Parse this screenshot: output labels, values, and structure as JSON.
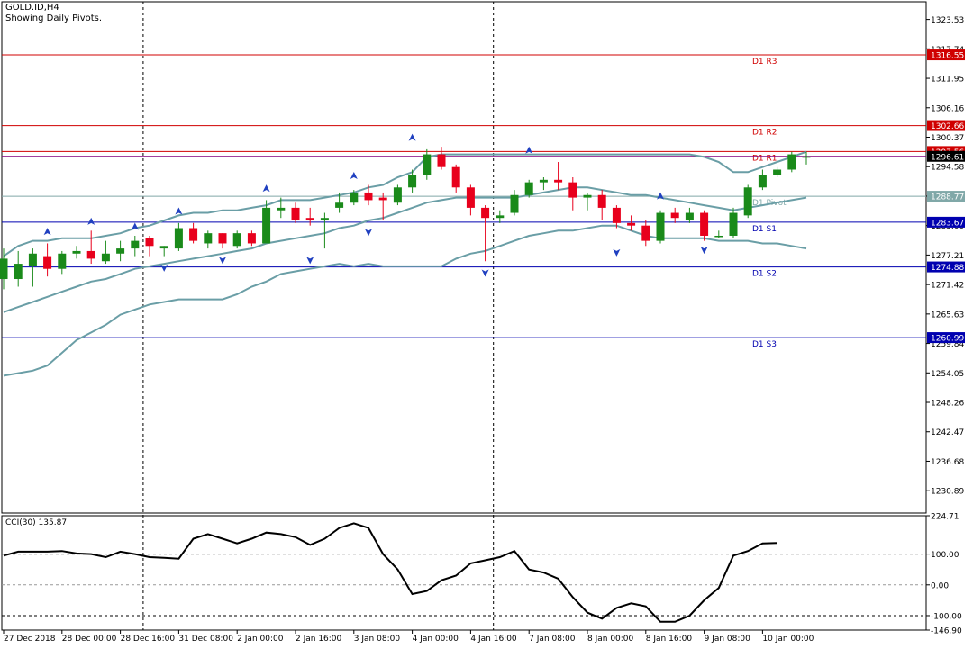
{
  "header": {
    "symbol": "GOLD.ID,H4",
    "subtitle": "Showing Daily Pivots."
  },
  "colors": {
    "background": "#ffffff",
    "axis": "#000000",
    "bull_candle": "#1a8a1a",
    "bear_candle": "#e8001c",
    "bollinger": "#6a9ea6",
    "resistance": "#d00000",
    "support": "#0000b0",
    "pivot": "#80a8a8",
    "fractal": "#2040c0",
    "cci_line": "#000000",
    "current_price": "#800080"
  },
  "chart_data": [
    {
      "type": "candlestick",
      "title": "GOLD.ID,H4",
      "ylim": [
        1226.5,
        1327.0
      ],
      "grid": false,
      "y_ticks": [
        "1323.53",
        "1317.74",
        "1311.95",
        "1306.16",
        "1300.37",
        "1294.58",
        "1288.79",
        "1283.00",
        "1277.21",
        "1271.42",
        "1265.63",
        "1259.84",
        "1254.05",
        "1248.26",
        "1242.47",
        "1236.68",
        "1230.89"
      ],
      "x_ticks": [
        {
          "label": "27 Dec 2018",
          "i": 0
        },
        {
          "label": "28 Dec 00:00",
          "i": 4
        },
        {
          "label": "28 Dec 16:00",
          "i": 8
        },
        {
          "label": "31 Dec 08:00",
          "i": 12
        },
        {
          "label": "2 Jan 00:00",
          "i": 16
        },
        {
          "label": "2 Jan 16:00",
          "i": 20
        },
        {
          "label": "3 Jan 08:00",
          "i": 24
        },
        {
          "label": "4 Jan 00:00",
          "i": 28
        },
        {
          "label": "4 Jan 16:00",
          "i": 32
        },
        {
          "label": "7 Jan 08:00",
          "i": 36
        },
        {
          "label": "8 Jan 00:00",
          "i": 40
        },
        {
          "label": "8 Jan 16:00",
          "i": 44
        },
        {
          "label": "9 Jan 08:00",
          "i": 48
        },
        {
          "label": "10 Jan 00:00",
          "i": 52
        }
      ],
      "period_separators": [
        10,
        34
      ],
      "pivot_levels": [
        {
          "name": "D1 R3",
          "value": 1316.55,
          "tag": "1316.55",
          "kind": "resistance"
        },
        {
          "name": "D1 R2",
          "value": 1302.66,
          "tag": "1302.66",
          "kind": "resistance"
        },
        {
          "name": "D1 R1",
          "value": 1297.56,
          "tag": "1297.56",
          "kind": "resistance"
        },
        {
          "name": "D1 Pivot",
          "value": 1288.77,
          "tag": "1288.77",
          "kind": "pivot"
        },
        {
          "name": "D1 S1",
          "value": 1283.67,
          "tag": "1283.67",
          "kind": "support"
        },
        {
          "name": "D1 S2",
          "value": 1274.88,
          "tag": "1274.88",
          "kind": "support"
        },
        {
          "name": "D1 S3",
          "value": 1260.99,
          "tag": "1260.99",
          "kind": "support"
        }
      ],
      "current_price": {
        "value": 1296.61,
        "tag": "1296.61"
      },
      "candles": [
        {
          "o": 1272.5,
          "h": 1278.5,
          "l": 1270.5,
          "c": 1276.5
        },
        {
          "o": 1272.5,
          "h": 1278.0,
          "l": 1271.0,
          "c": 1275.5
        },
        {
          "o": 1275.0,
          "h": 1278.5,
          "l": 1271.0,
          "c": 1277.5
        },
        {
          "o": 1277.0,
          "h": 1279.5,
          "l": 1273.0,
          "c": 1274.5
        },
        {
          "o": 1274.5,
          "h": 1278.0,
          "l": 1273.5,
          "c": 1277.5
        },
        {
          "o": 1277.5,
          "h": 1279.0,
          "l": 1276.5,
          "c": 1278.0
        },
        {
          "o": 1278.0,
          "h": 1282.0,
          "l": 1275.5,
          "c": 1276.5
        },
        {
          "o": 1276.0,
          "h": 1280.0,
          "l": 1275.5,
          "c": 1277.5
        },
        {
          "o": 1277.5,
          "h": 1280.0,
          "l": 1276.0,
          "c": 1278.5
        },
        {
          "o": 1278.5,
          "h": 1281.0,
          "l": 1277.0,
          "c": 1280.0
        },
        {
          "o": 1280.5,
          "h": 1281.0,
          "l": 1277.0,
          "c": 1279.0
        },
        {
          "o": 1278.5,
          "h": 1279.0,
          "l": 1277.0,
          "c": 1279.0
        },
        {
          "o": 1278.5,
          "h": 1283.5,
          "l": 1278.0,
          "c": 1282.5
        },
        {
          "o": 1282.5,
          "h": 1283.5,
          "l": 1279.5,
          "c": 1280.0
        },
        {
          "o": 1279.5,
          "h": 1282.0,
          "l": 1278.5,
          "c": 1281.5
        },
        {
          "o": 1281.5,
          "h": 1281.5,
          "l": 1278.5,
          "c": 1279.5
        },
        {
          "o": 1279.0,
          "h": 1282.0,
          "l": 1278.5,
          "c": 1281.5
        },
        {
          "o": 1281.5,
          "h": 1282.0,
          "l": 1279.0,
          "c": 1279.5
        },
        {
          "o": 1279.5,
          "h": 1288.0,
          "l": 1279.5,
          "c": 1286.5
        },
        {
          "o": 1286.0,
          "h": 1288.5,
          "l": 1284.5,
          "c": 1286.5
        },
        {
          "o": 1286.5,
          "h": 1287.5,
          "l": 1283.5,
          "c": 1284.0
        },
        {
          "o": 1284.5,
          "h": 1286.5,
          "l": 1283.0,
          "c": 1284.0
        },
        {
          "o": 1284.0,
          "h": 1285.5,
          "l": 1278.5,
          "c": 1284.5
        },
        {
          "o": 1286.5,
          "h": 1289.5,
          "l": 1285.5,
          "c": 1287.5
        },
        {
          "o": 1287.5,
          "h": 1290.0,
          "l": 1287.0,
          "c": 1289.5
        },
        {
          "o": 1289.5,
          "h": 1291.0,
          "l": 1287.0,
          "c": 1288.0
        },
        {
          "o": 1288.5,
          "h": 1289.5,
          "l": 1284.0,
          "c": 1288.0
        },
        {
          "o": 1287.5,
          "h": 1291.0,
          "l": 1287.0,
          "c": 1290.5
        },
        {
          "o": 1290.5,
          "h": 1294.0,
          "l": 1289.5,
          "c": 1293.0
        },
        {
          "o": 1293.0,
          "h": 1298.0,
          "l": 1292.0,
          "c": 1297.0
        },
        {
          "o": 1297.0,
          "h": 1298.5,
          "l": 1294.0,
          "c": 1294.5
        },
        {
          "o": 1294.5,
          "h": 1295.0,
          "l": 1289.5,
          "c": 1290.5
        },
        {
          "o": 1290.5,
          "h": 1291.0,
          "l": 1285.0,
          "c": 1286.5
        },
        {
          "o": 1286.5,
          "h": 1287.0,
          "l": 1276.0,
          "c": 1284.5
        },
        {
          "o": 1284.5,
          "h": 1286.0,
          "l": 1283.5,
          "c": 1285.0
        },
        {
          "o": 1285.5,
          "h": 1290.0,
          "l": 1285.0,
          "c": 1289.0
        },
        {
          "o": 1289.0,
          "h": 1292.0,
          "l": 1288.5,
          "c": 1291.5
        },
        {
          "o": 1291.5,
          "h": 1292.5,
          "l": 1290.0,
          "c": 1292.0
        },
        {
          "o": 1292.0,
          "h": 1295.5,
          "l": 1290.0,
          "c": 1291.5
        },
        {
          "o": 1291.5,
          "h": 1292.5,
          "l": 1286.0,
          "c": 1288.5
        },
        {
          "o": 1288.5,
          "h": 1289.5,
          "l": 1286.0,
          "c": 1289.0
        },
        {
          "o": 1289.0,
          "h": 1290.0,
          "l": 1284.0,
          "c": 1286.5
        },
        {
          "o": 1286.5,
          "h": 1287.0,
          "l": 1282.5,
          "c": 1283.5
        },
        {
          "o": 1283.5,
          "h": 1285.0,
          "l": 1282.0,
          "c": 1283.0
        },
        {
          "o": 1283.0,
          "h": 1284.0,
          "l": 1279.0,
          "c": 1280.0
        },
        {
          "o": 1280.0,
          "h": 1286.0,
          "l": 1279.5,
          "c": 1285.5
        },
        {
          "o": 1285.5,
          "h": 1286.5,
          "l": 1283.5,
          "c": 1284.5
        },
        {
          "o": 1284.0,
          "h": 1286.5,
          "l": 1283.5,
          "c": 1285.5
        },
        {
          "o": 1285.5,
          "h": 1286.0,
          "l": 1280.0,
          "c": 1281.0
        },
        {
          "o": 1281.0,
          "h": 1282.0,
          "l": 1280.5,
          "c": 1281.0
        },
        {
          "o": 1281.0,
          "h": 1286.5,
          "l": 1280.5,
          "c": 1285.5
        },
        {
          "o": 1285.0,
          "h": 1291.0,
          "l": 1284.5,
          "c": 1290.5
        },
        {
          "o": 1290.5,
          "h": 1294.0,
          "l": 1290.0,
          "c": 1293.0
        },
        {
          "o": 1293.0,
          "h": 1294.5,
          "l": 1292.5,
          "c": 1294.0
        },
        {
          "o": 1294.0,
          "h": 1297.5,
          "l": 1293.5,
          "c": 1297.0
        },
        {
          "o": 1296.5,
          "h": 1297.5,
          "l": 1295.0,
          "c": 1296.6
        }
      ],
      "bollinger": {
        "upper": [
          1277.0,
          1279.0,
          1280.0,
          1280.0,
          1280.5,
          1280.5,
          1280.5,
          1281.0,
          1281.5,
          1282.5,
          1283.0,
          1284.0,
          1285.0,
          1285.5,
          1285.5,
          1286.0,
          1286.0,
          1286.5,
          1287.0,
          1288.0,
          1288.0,
          1288.0,
          1288.5,
          1289.0,
          1289.5,
          1290.5,
          1291.0,
          1292.5,
          1293.5,
          1296.5,
          1297.0,
          1297.0,
          1297.0,
          1297.0,
          1297.0,
          1297.0,
          1297.0,
          1297.0,
          1297.0,
          1297.0,
          1297.0,
          1297.0,
          1297.0,
          1297.0,
          1297.0,
          1297.0,
          1297.0,
          1297.0,
          1296.5,
          1295.5,
          1293.5,
          1293.5,
          1294.5,
          1295.5,
          1296.5,
          1297.5
        ],
        "middle": [
          1266.0,
          1267.0,
          1268.0,
          1269.0,
          1270.0,
          1271.0,
          1272.0,
          1272.5,
          1273.5,
          1274.5,
          1275.0,
          1275.5,
          1276.0,
          1276.5,
          1277.0,
          1277.5,
          1278.0,
          1278.5,
          1279.5,
          1280.0,
          1280.5,
          1281.0,
          1281.5,
          1282.5,
          1283.0,
          1284.0,
          1284.5,
          1285.5,
          1286.5,
          1287.5,
          1288.0,
          1288.5,
          1288.5,
          1288.5,
          1288.5,
          1288.5,
          1289.0,
          1289.5,
          1290.0,
          1290.5,
          1290.5,
          1290.0,
          1289.5,
          1289.0,
          1289.0,
          1288.5,
          1288.0,
          1287.5,
          1287.0,
          1286.5,
          1286.0,
          1286.5,
          1287.0,
          1287.5,
          1288.0,
          1288.5
        ],
        "lower": [
          1253.5,
          1254.0,
          1254.5,
          1255.5,
          1258.0,
          1260.5,
          1262.0,
          1263.5,
          1265.5,
          1266.5,
          1267.5,
          1268.0,
          1268.5,
          1268.5,
          1268.5,
          1268.5,
          1269.5,
          1271.0,
          1272.0,
          1273.5,
          1274.0,
          1274.5,
          1275.0,
          1275.5,
          1275.0,
          1275.5,
          1275.0,
          1275.0,
          1275.0,
          1275.0,
          1275.0,
          1276.5,
          1277.5,
          1278.0,
          1279.0,
          1280.0,
          1281.0,
          1281.5,
          1282.0,
          1282.0,
          1282.5,
          1283.0,
          1283.0,
          1282.0,
          1281.0,
          1280.5,
          1280.5,
          1280.5,
          1280.5,
          1280.0,
          1280.0,
          1280.0,
          1279.5,
          1279.5,
          1279.0,
          1278.5
        ]
      },
      "fractals_up": [
        {
          "i": 3,
          "v": 1281.5
        },
        {
          "i": 6,
          "v": 1283.5
        },
        {
          "i": 9,
          "v": 1282.5
        },
        {
          "i": 12,
          "v": 1285.5
        },
        {
          "i": 18,
          "v": 1290.0
        },
        {
          "i": 24,
          "v": 1292.5
        },
        {
          "i": 28,
          "v": 1300.0
        },
        {
          "i": 36,
          "v": 1297.5
        },
        {
          "i": 45,
          "v": 1288.5
        }
      ],
      "fractals_down": [
        {
          "i": 11,
          "v": 1275.0
        },
        {
          "i": 15,
          "v": 1276.5
        },
        {
          "i": 21,
          "v": 1276.5
        },
        {
          "i": 25,
          "v": 1282.0
        },
        {
          "i": 33,
          "v": 1274.0
        },
        {
          "i": 42,
          "v": 1278.0
        },
        {
          "i": 48,
          "v": 1278.5
        }
      ]
    },
    {
      "type": "line",
      "title": "CCI(30) 135.87",
      "ylim": [
        -146.9,
        224.71
      ],
      "y_ticks": [
        "224.71",
        "100.00",
        "0.00",
        "-100.00",
        "-146.90"
      ],
      "levels": [
        100,
        0,
        -100
      ],
      "series": [
        {
          "name": "CCI(30)",
          "values": [
            95,
            108,
            108,
            108,
            110,
            102,
            100,
            90,
            108,
            100,
            90,
            88,
            85,
            150,
            165,
            150,
            135,
            150,
            170,
            165,
            155,
            130,
            150,
            185,
            200,
            185,
            100,
            50,
            -30,
            -20,
            15,
            30,
            70,
            80,
            90,
            110,
            50,
            40,
            20,
            -40,
            -90,
            -110,
            -75,
            -60,
            -70,
            -120,
            -120,
            -100,
            -50,
            -10,
            95,
            110,
            135,
            136
          ]
        }
      ]
    }
  ]
}
